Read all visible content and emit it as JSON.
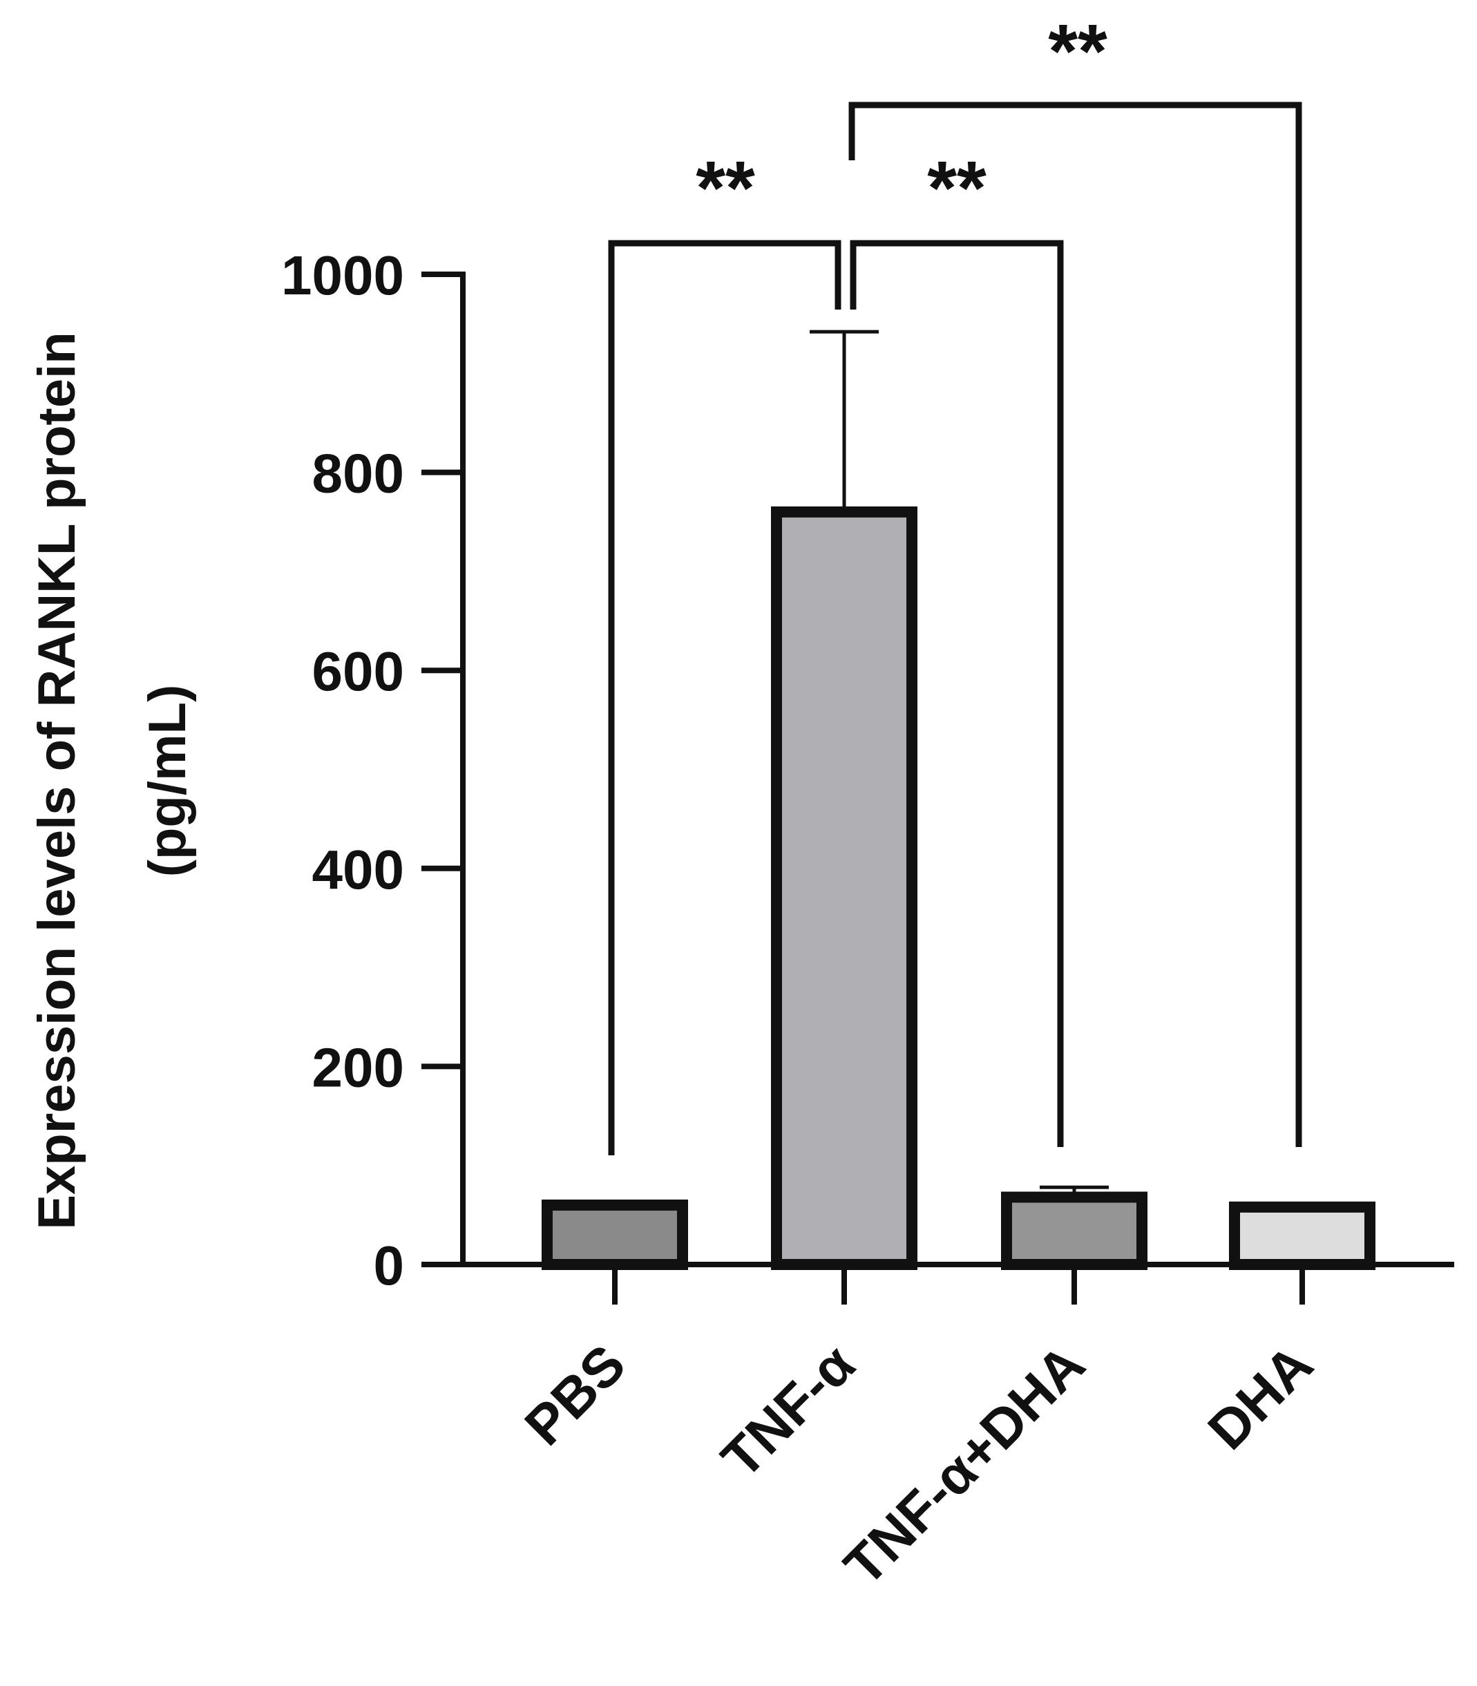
{
  "chart_data": {
    "type": "bar",
    "categories": [
      "PBS",
      "TNF-α",
      "TNF-α+DHA",
      "DHA"
    ],
    "values": [
      60,
      760,
      68,
      58
    ],
    "errors": [
      2,
      182,
      10,
      2
    ],
    "bar_colors": [
      "#8a8a8a",
      "#b0b0b4",
      "#959595",
      "#dddddd"
    ],
    "ylabel_line1": "Expression levels of RANKL protein",
    "ylabel_line2": "(pg/mL)",
    "ylim": [
      0,
      1000
    ],
    "yticks": [
      "0",
      "200",
      "400",
      "600",
      "800",
      "1000"
    ],
    "significance": [
      {
        "from": 0,
        "to": 1,
        "label": "**"
      },
      {
        "from": 1,
        "to": 2,
        "label": "**"
      },
      {
        "from": 1,
        "to": 3,
        "label": "**"
      }
    ]
  }
}
